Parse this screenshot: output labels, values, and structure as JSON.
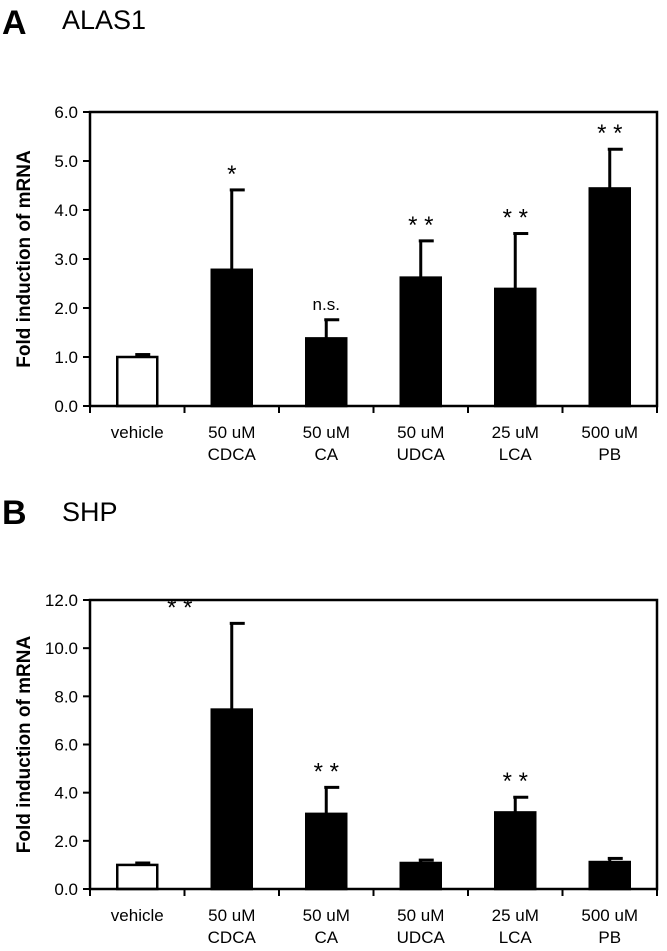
{
  "chart_data": [
    {
      "panel": "A",
      "title": "ALAS1",
      "type": "bar",
      "ylabel": "Fold induction of mRNA",
      "ylim": [
        0,
        6
      ],
      "yticks": [
        "0.0",
        "1.0",
        "2.0",
        "3.0",
        "4.0",
        "5.0",
        "6.0"
      ],
      "categories": [
        [
          "vehicle"
        ],
        [
          "50 uM",
          "CDCA"
        ],
        [
          "50 uM",
          "CA"
        ],
        [
          "50 uM",
          "UDCA"
        ],
        [
          "25 uM",
          "LCA"
        ],
        [
          "500 uM",
          "PB"
        ]
      ],
      "values": [
        1.0,
        2.78,
        1.38,
        2.62,
        2.39,
        4.44
      ],
      "errors": [
        0.05,
        1.63,
        0.38,
        0.75,
        1.13,
        0.8
      ],
      "fills": [
        "#ffffff",
        "#000000",
        "#000000",
        "#000000",
        "#000000",
        "#000000"
      ],
      "annotations": [
        "",
        "*",
        "n.s.",
        "* *",
        "* *",
        "* *"
      ]
    },
    {
      "panel": "B",
      "title": "SHP",
      "type": "bar",
      "ylabel": "Fold induction of mRNA",
      "ylim": [
        0,
        12
      ],
      "yticks": [
        "0.0",
        "2.0",
        "4.0",
        "6.0",
        "8.0",
        "10.0",
        "12.0"
      ],
      "categories": [
        [
          "vehicle"
        ],
        [
          "50 uM",
          "CDCA"
        ],
        [
          "50 uM",
          "CA"
        ],
        [
          "50 uM",
          "UDCA"
        ],
        [
          "25 uM",
          "LCA"
        ],
        [
          "500 uM",
          "PB"
        ]
      ],
      "values": [
        1.0,
        7.45,
        3.12,
        1.08,
        3.18,
        1.12
      ],
      "errors": [
        0.08,
        3.58,
        1.1,
        0.12,
        0.63,
        0.15
      ],
      "fills": [
        "#ffffff",
        "#000000",
        "#000000",
        "#000000",
        "#000000",
        "#000000"
      ],
      "annotations": [
        "",
        "* *",
        "* *",
        "",
        "* *",
        ""
      ]
    }
  ]
}
